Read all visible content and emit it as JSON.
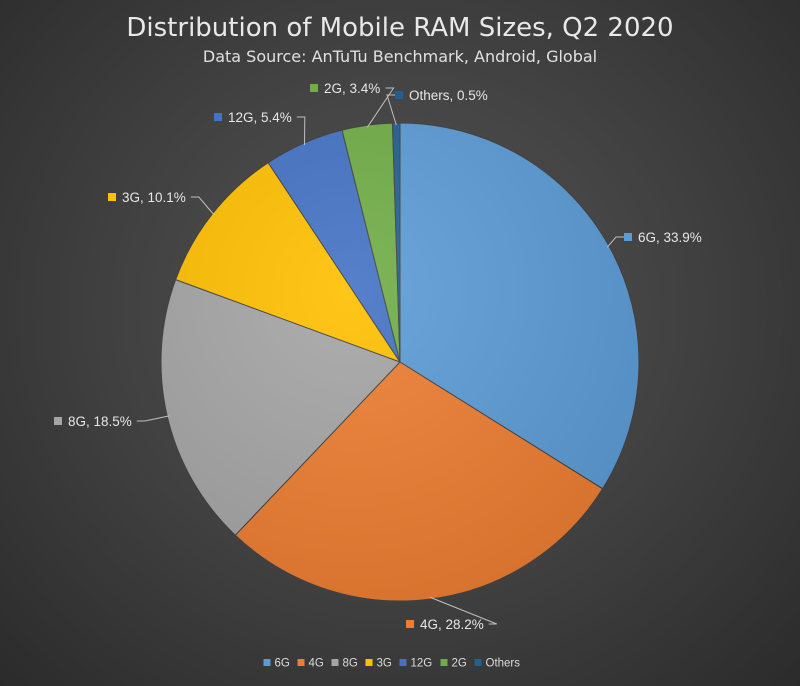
{
  "chart_data": {
    "type": "pie",
    "title": "Distribution of Mobile RAM Sizes, Q2 2020",
    "subtitle": "Data Source: AnTuTu Benchmark, Android, Global",
    "legend_position": "bottom",
    "slices": [
      {
        "name": "6G",
        "value": 33.9,
        "label": "6G, 33.9%",
        "color": "#5b9bd5"
      },
      {
        "name": "4G",
        "value": 28.2,
        "label": "4G, 28.2%",
        "color": "#ed7d31"
      },
      {
        "name": "8G",
        "value": 18.5,
        "label": "8G, 18.5%",
        "color": "#a5a5a5"
      },
      {
        "name": "3G",
        "value": 10.1,
        "label": "3G, 10.1%",
        "color": "#ffc000"
      },
      {
        "name": "12G",
        "value": 5.4,
        "label": "12G, 5.4%",
        "color": "#4472c4"
      },
      {
        "name": "2G",
        "value": 3.4,
        "label": "2G, 3.4%",
        "color": "#70ad47"
      },
      {
        "name": "Others",
        "value": 0.5,
        "label": "Others, 0.5%",
        "color": "#255e91"
      }
    ]
  }
}
